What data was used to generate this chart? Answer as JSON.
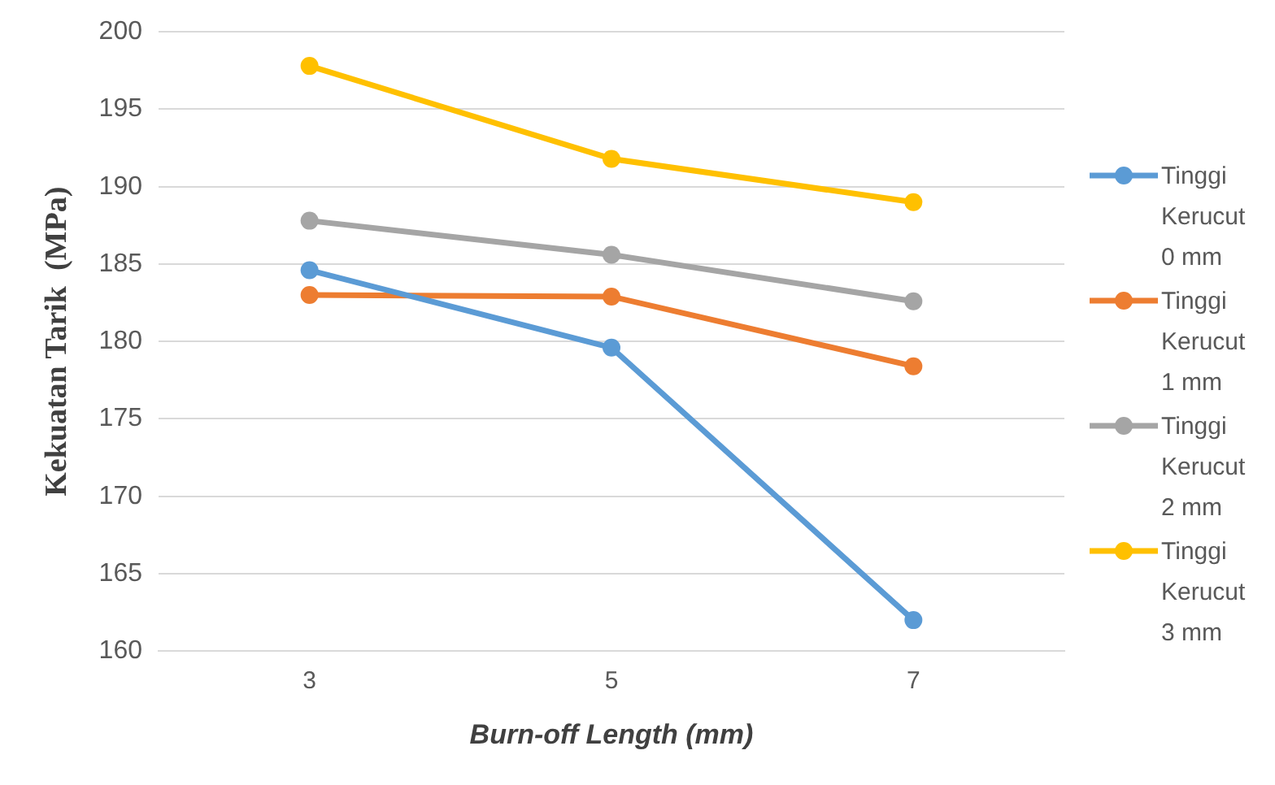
{
  "chart_data": {
    "type": "line",
    "xlabel": "Burn-off Length (mm)",
    "ylabel": "Kekuatan Tarik  (MPa)",
    "categories": [
      "3",
      "5",
      "7"
    ],
    "series": [
      {
        "name": "Tinggi Kerucut 0 mm",
        "color": "#5b9bd5",
        "values": [
          184.6,
          179.6,
          162.0
        ]
      },
      {
        "name": "Tinggi Kerucut 1 mm",
        "color": "#ed7d31",
        "values": [
          183.0,
          182.9,
          178.4
        ]
      },
      {
        "name": "Tinggi Kerucut 2 mm",
        "color": "#a5a5a5",
        "values": [
          187.8,
          185.6,
          182.6
        ]
      },
      {
        "name": "Tinggi Kerucut 3 mm",
        "color": "#ffc000",
        "values": [
          197.8,
          191.8,
          189.0
        ]
      }
    ],
    "ylim": [
      160,
      200
    ],
    "yticks": [
      160,
      165,
      170,
      175,
      180,
      185,
      190,
      195,
      200
    ],
    "grid": "y",
    "legend": "right",
    "marker": "circle",
    "line_style": "solid"
  }
}
